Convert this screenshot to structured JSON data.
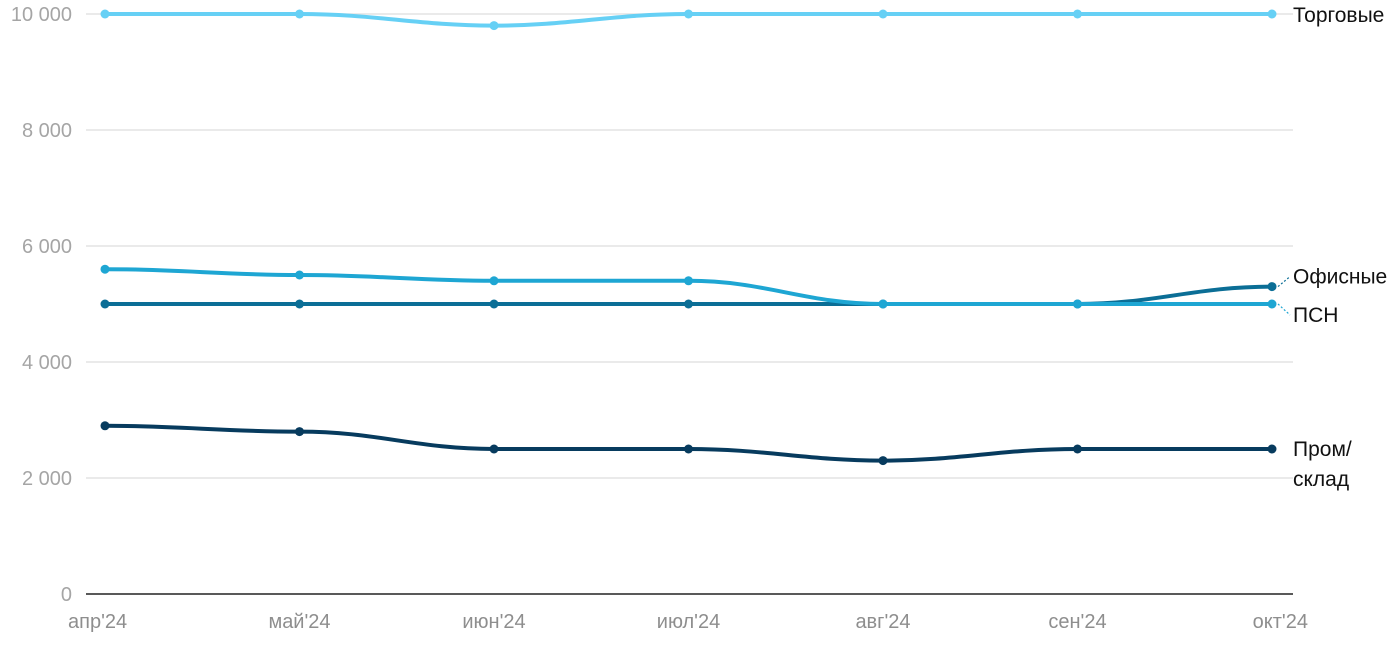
{
  "chart_data": {
    "type": "line",
    "title": "",
    "xlabel": "",
    "ylabel": "",
    "categories": [
      "апр'24",
      "май'24",
      "июн'24",
      "июл'24",
      "авг'24",
      "сен'24",
      "окт'24"
    ],
    "ylim": [
      0,
      10000
    ],
    "yticks": [
      {
        "value": 0,
        "label": "0"
      },
      {
        "value": 2000,
        "label": "2 000"
      },
      {
        "value": 4000,
        "label": "4 000"
      },
      {
        "value": 6000,
        "label": "6 000"
      },
      {
        "value": 8000,
        "label": "8 000"
      },
      {
        "value": 10000,
        "label": "10 000"
      }
    ],
    "grid": true,
    "legend": "inline labels at right end of each line",
    "series": [
      {
        "id": "trade",
        "name": "Торговые",
        "label_lines": [
          "Торговые"
        ],
        "color": "#66d0f5",
        "values": [
          10000,
          10000,
          9800,
          10000,
          10000,
          10000,
          10000
        ]
      },
      {
        "id": "office",
        "name": "Офисные",
        "label_lines": [
          "Офисные"
        ],
        "color": "#0b6e96",
        "values": [
          5000,
          5000,
          5000,
          5000,
          5000,
          5000,
          5300
        ]
      },
      {
        "id": "psn",
        "name": "ПСН",
        "label_lines": [
          "ПСН"
        ],
        "color": "#1ea6d3",
        "values": [
          5600,
          5500,
          5400,
          5400,
          5000,
          5000,
          5000
        ]
      },
      {
        "id": "warehouse",
        "name": "Пром/склад",
        "label_lines": [
          "Пром/",
          "склад"
        ],
        "color": "#073b5e",
        "values": [
          2900,
          2800,
          2500,
          2500,
          2300,
          2500,
          2500
        ]
      }
    ]
  }
}
